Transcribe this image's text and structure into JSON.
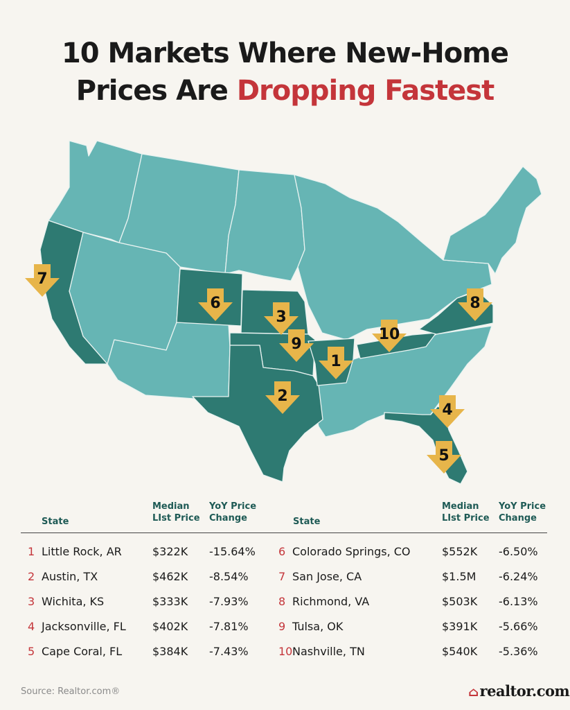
{
  "title": {
    "line1": "10 Markets Where New-Home",
    "line2_prefix": "Prices Are ",
    "line2_accent": "Dropping Fastest"
  },
  "colors": {
    "background": "#f7f5f0",
    "state_fill": "#66b5b4",
    "highlight_fill": "#2e7a72",
    "state_border": "#e9f3f1",
    "marker": "#e7b54a",
    "accent": "#c4353a",
    "header_text": "#1e5a55"
  },
  "map": {
    "highlighted_states": [
      "CA",
      "CO",
      "KS",
      "OK",
      "TX",
      "AR",
      "TN",
      "VA",
      "FL"
    ],
    "markers": [
      {
        "label": "1",
        "state": "AR"
      },
      {
        "label": "2",
        "state": "TX"
      },
      {
        "label": "3",
        "state": "KS"
      },
      {
        "label": "4",
        "state": "FL"
      },
      {
        "label": "5",
        "state": "FL"
      },
      {
        "label": "6",
        "state": "CO"
      },
      {
        "label": "7",
        "state": "CA"
      },
      {
        "label": "8",
        "state": "VA"
      },
      {
        "label": "9",
        "state": "OK"
      },
      {
        "label": "10",
        "state": "TN"
      }
    ]
  },
  "table": {
    "headers": {
      "state": "State",
      "price_l1": "Median",
      "price_l2": "LIst Price",
      "change_l1": "YoY Price",
      "change_l2": "Change"
    },
    "left": [
      {
        "rank": "1",
        "city": "Little Rock, AR",
        "price": "$322K",
        "change": "-15.64%"
      },
      {
        "rank": "2",
        "city": "Austin, TX",
        "price": "$462K",
        "change": "-8.54%"
      },
      {
        "rank": "3",
        "city": "Wichita, KS",
        "price": "$333K",
        "change": "-7.93%"
      },
      {
        "rank": "4",
        "city": "Jacksonville, FL",
        "price": "$402K",
        "change": "-7.81%"
      },
      {
        "rank": "5",
        "city": "Cape Coral, FL",
        "price": "$384K",
        "change": "-7.43%"
      }
    ],
    "right": [
      {
        "rank": "6",
        "city": "Colorado Springs, CO",
        "price": "$552K",
        "change": "-6.50%"
      },
      {
        "rank": "7",
        "city": "San Jose, CA",
        "price": "$1.5M",
        "change": "-6.24%"
      },
      {
        "rank": "8",
        "city": "Richmond, VA",
        "price": "$503K",
        "change": "-6.13%"
      },
      {
        "rank": "9",
        "city": "Tulsa, OK",
        "price": "$391K",
        "change": "-5.66%"
      },
      {
        "rank": "10",
        "city": "Nashville, TN",
        "price": "$540K",
        "change": "-5.36%"
      }
    ]
  },
  "footer": {
    "source": "Source: Realtor.com®",
    "logo": "realtor.com",
    "logo_icon": "house-icon"
  }
}
